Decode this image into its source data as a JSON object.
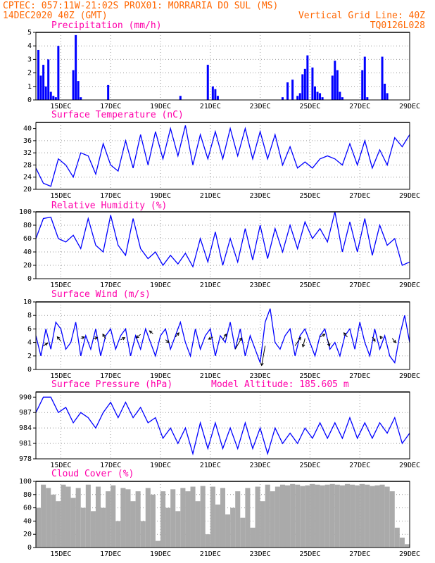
{
  "header": {
    "line1_left": "CPTEC:  057:11W-21:02S  PROX01: MORRARIA DO SUL (MS)",
    "line2_left": "14DEC2020 40Z (GMT)",
    "line2_right": "Vertical Grid Line: 40Z",
    "line3_right": "TQ0126L028"
  },
  "x_dates": [
    "15DEC",
    "17DEC",
    "19DEC",
    "21DEC",
    "23DEC",
    "25DEC",
    "27DEC",
    "29DEC"
  ],
  "colors": {
    "header": "#ff6600",
    "title": "#ff00aa",
    "line": "#0000ff",
    "bar": "#0000ff",
    "cloud": "#aaaaaa"
  },
  "chart_data": [
    {
      "type": "bar",
      "title": "Precipitation (mm/h)",
      "ylim": [
        0,
        5
      ],
      "yticks": [
        0,
        1,
        2,
        3,
        4,
        5
      ],
      "x_range": [
        14,
        29
      ],
      "series": [
        {
          "x": [
            14.1,
            14.2,
            14.3,
            14.4,
            14.5,
            14.6,
            14.7,
            14.8,
            14.9,
            15.5,
            15.6,
            15.7,
            15.8,
            16.9,
            19.8,
            20.9,
            21.1,
            21.2,
            21.3,
            23.9,
            24.1,
            24.3,
            24.5,
            24.6,
            24.7,
            24.8,
            24.9,
            25.1,
            25.2,
            25.3,
            25.4,
            25.5,
            25.9,
            26.0,
            26.1,
            26.2,
            26.3,
            27.1,
            27.2,
            27.3,
            27.9,
            28.0,
            28.1
          ],
          "y": [
            3.7,
            1.8,
            2.6,
            1.0,
            3.0,
            0.6,
            0.3,
            0.2,
            4.0,
            2.2,
            4.8,
            1.4,
            0.2,
            1.1,
            0.3,
            2.6,
            1.0,
            0.8,
            0.3,
            0.2,
            1.3,
            1.5,
            0.3,
            0.5,
            1.9,
            2.3,
            3.3,
            2.4,
            1.0,
            0.6,
            0.5,
            0.2,
            1.8,
            2.9,
            2.2,
            0.6,
            0.2,
            2.2,
            3.2,
            0.2,
            3.2,
            1.2,
            0.5
          ]
        }
      ]
    },
    {
      "type": "line",
      "title": "Surface Temperature (nC)",
      "ylim": [
        20,
        42
      ],
      "yticks": [
        20,
        24,
        28,
        32,
        36,
        40
      ],
      "x_range": [
        14,
        29
      ],
      "series": [
        {
          "x": [
            14.0,
            14.3,
            14.6,
            14.9,
            15.2,
            15.5,
            15.8,
            16.1,
            16.4,
            16.7,
            17.0,
            17.3,
            17.6,
            17.9,
            18.2,
            18.5,
            18.8,
            19.1,
            19.4,
            19.7,
            20.0,
            20.3,
            20.6,
            20.9,
            21.2,
            21.5,
            21.8,
            22.1,
            22.4,
            22.7,
            23.0,
            23.3,
            23.6,
            23.9,
            24.2,
            24.5,
            24.8,
            25.1,
            25.4,
            25.7,
            26.0,
            26.3,
            26.6,
            26.9,
            27.2,
            27.5,
            27.8,
            28.1,
            28.4,
            28.7,
            29.0
          ],
          "y": [
            27,
            22,
            21,
            30,
            28,
            24,
            32,
            31,
            25,
            35,
            28,
            26,
            36,
            27,
            38,
            28,
            39,
            30,
            40,
            31,
            41,
            28,
            38,
            30,
            39,
            30,
            40,
            31,
            40,
            30,
            39,
            30,
            38,
            28,
            34,
            27,
            29,
            27,
            30,
            31,
            30,
            28,
            35,
            28,
            36,
            27,
            33,
            28,
            37,
            34,
            38
          ]
        }
      ]
    },
    {
      "type": "line",
      "title": "Relative Humidity (%)",
      "ylim": [
        0,
        100
      ],
      "yticks": [
        0,
        20,
        40,
        60,
        80,
        100
      ],
      "x_range": [
        14,
        29
      ],
      "series": [
        {
          "x": [
            14.0,
            14.3,
            14.6,
            14.9,
            15.2,
            15.5,
            15.8,
            16.1,
            16.4,
            16.7,
            17.0,
            17.3,
            17.6,
            17.9,
            18.2,
            18.5,
            18.8,
            19.1,
            19.4,
            19.7,
            20.0,
            20.3,
            20.6,
            20.9,
            21.2,
            21.5,
            21.8,
            22.1,
            22.4,
            22.7,
            23.0,
            23.3,
            23.6,
            23.9,
            24.2,
            24.5,
            24.8,
            25.1,
            25.4,
            25.7,
            26.0,
            26.3,
            26.6,
            26.9,
            27.2,
            27.5,
            27.8,
            28.1,
            28.4,
            28.7,
            29.0
          ],
          "y": [
            60,
            90,
            92,
            60,
            55,
            65,
            45,
            90,
            50,
            40,
            95,
            50,
            35,
            90,
            45,
            30,
            40,
            20,
            35,
            22,
            38,
            18,
            60,
            25,
            70,
            20,
            60,
            25,
            75,
            28,
            80,
            30,
            75,
            40,
            80,
            45,
            85,
            60,
            75,
            55,
            100,
            40,
            85,
            40,
            90,
            35,
            80,
            50,
            60,
            20,
            25
          ]
        }
      ]
    },
    {
      "type": "line",
      "title": "Surface Wind (m/s)",
      "ylim": [
        0,
        10
      ],
      "yticks": [
        0,
        2,
        4,
        6,
        8,
        10
      ],
      "x_range": [
        14,
        29
      ],
      "series": [
        {
          "x": [
            14.0,
            14.2,
            14.4,
            14.6,
            14.8,
            15.0,
            15.2,
            15.4,
            15.6,
            15.8,
            16.0,
            16.2,
            16.4,
            16.6,
            16.8,
            17.0,
            17.2,
            17.4,
            17.6,
            17.8,
            18.0,
            18.2,
            18.4,
            18.6,
            18.8,
            19.0,
            19.2,
            19.4,
            19.6,
            19.8,
            20.0,
            20.2,
            20.4,
            20.6,
            20.8,
            21.0,
            21.2,
            21.4,
            21.6,
            21.8,
            22.0,
            22.2,
            22.4,
            22.6,
            22.8,
            23.0,
            23.2,
            23.4,
            23.6,
            23.8,
            24.0,
            24.2,
            24.4,
            24.6,
            24.8,
            25.0,
            25.2,
            25.4,
            25.6,
            25.8,
            26.0,
            26.2,
            26.4,
            26.6,
            26.8,
            27.0,
            27.2,
            27.4,
            27.6,
            27.8,
            28.0,
            28.2,
            28.4,
            28.6,
            28.8,
            29.0
          ],
          "y": [
            5,
            2,
            6,
            3,
            7,
            6,
            3,
            4,
            7,
            2,
            5,
            3,
            6,
            2,
            5,
            6,
            3,
            5,
            6,
            2,
            5,
            3,
            6,
            4,
            2,
            5,
            6,
            3,
            5,
            7,
            4,
            2,
            6,
            3,
            5,
            6,
            2,
            5,
            4,
            7,
            3,
            6,
            2,
            5,
            3,
            1,
            7,
            9,
            4,
            3,
            5,
            6,
            2,
            5,
            6,
            4,
            2,
            5,
            6,
            3,
            4,
            2,
            5,
            6,
            3,
            7,
            4,
            2,
            6,
            3,
            5,
            2,
            1,
            5,
            8,
            4
          ]
        }
      ],
      "vectors": [
        {
          "x": 14.3,
          "y": 3.5,
          "u": 0.6,
          "v": 0.4
        },
        {
          "x": 15.0,
          "y": 4.2,
          "u": -0.5,
          "v": 0.6
        },
        {
          "x": 15.8,
          "y": 4.6,
          "u": 0.5,
          "v": 0.2
        },
        {
          "x": 16.3,
          "y": 4.6,
          "u": 0.6,
          "v": 0.1
        },
        {
          "x": 16.8,
          "y": 4.5,
          "u": -0.4,
          "v": 0.7
        },
        {
          "x": 17.4,
          "y": 4.4,
          "u": 0.6,
          "v": 0.3
        },
        {
          "x": 18.2,
          "y": 5.2,
          "u": -0.6,
          "v": -0.5
        },
        {
          "x": 18.7,
          "y": 5.3,
          "u": -0.5,
          "v": 0.4
        },
        {
          "x": 19.2,
          "y": 4.4,
          "u": 0.5,
          "v": -0.4
        },
        {
          "x": 19.6,
          "y": 4.8,
          "u": 0.5,
          "v": 0.6
        },
        {
          "x": 21.1,
          "y": 4.8,
          "u": -0.6,
          "v": -0.3
        },
        {
          "x": 21.5,
          "y": 4.4,
          "u": 0.5,
          "v": 0.8
        },
        {
          "x": 22.0,
          "y": 3.0,
          "u": 0.9,
          "v": 1.6
        },
        {
          "x": 23.2,
          "y": 3.5,
          "u": -0.5,
          "v": -2.8
        },
        {
          "x": 24.4,
          "y": 3.5,
          "u": 0.8,
          "v": 1.2
        },
        {
          "x": 24.8,
          "y": 4.6,
          "u": -0.3,
          "v": -1.2
        },
        {
          "x": 25.4,
          "y": 4.8,
          "u": 0.7,
          "v": 0.4
        },
        {
          "x": 25.7,
          "y": 4.5,
          "u": 0.3,
          "v": -1.0
        },
        {
          "x": 26.5,
          "y": 4.8,
          "u": -0.5,
          "v": 0.6
        },
        {
          "x": 27.5,
          "y": 4.8,
          "u": 0.4,
          "v": -0.6
        },
        {
          "x": 27.9,
          "y": 4.5,
          "u": -0.3,
          "v": 0.4
        },
        {
          "x": 28.3,
          "y": 4.6,
          "u": 0.5,
          "v": -0.6
        }
      ]
    },
    {
      "type": "line",
      "title": "Surface Pressure (hPa)",
      "subtitle": "Model Altitude: 185.605 m",
      "ylim": [
        978,
        991
      ],
      "yticks": [
        978,
        981,
        984,
        987,
        990
      ],
      "x_range": [
        14,
        29
      ],
      "series": [
        {
          "x": [
            14.0,
            14.3,
            14.6,
            14.9,
            15.2,
            15.5,
            15.8,
            16.1,
            16.4,
            16.7,
            17.0,
            17.3,
            17.6,
            17.9,
            18.2,
            18.5,
            18.8,
            19.1,
            19.4,
            19.7,
            20.0,
            20.3,
            20.6,
            20.9,
            21.2,
            21.5,
            21.8,
            22.1,
            22.4,
            22.7,
            23.0,
            23.3,
            23.6,
            23.9,
            24.2,
            24.5,
            24.8,
            25.1,
            25.4,
            25.7,
            26.0,
            26.3,
            26.6,
            26.9,
            27.2,
            27.5,
            27.8,
            28.1,
            28.4,
            28.7,
            29.0
          ],
          "y": [
            987,
            990,
            990,
            987,
            988,
            985,
            987,
            986,
            984,
            987,
            989,
            986,
            989,
            986,
            988,
            985,
            986,
            982,
            984,
            981,
            984,
            979,
            985,
            980,
            985,
            980,
            984,
            980,
            985,
            980,
            984,
            979,
            984,
            981,
            983,
            981,
            984,
            982,
            985,
            982,
            985,
            982,
            986,
            982,
            985,
            982,
            985,
            983,
            986,
            981,
            983
          ]
        }
      ]
    },
    {
      "type": "area",
      "title": "Cloud Cover (%)",
      "ylim": [
        0,
        100
      ],
      "yticks": [
        0,
        20,
        40,
        60,
        80,
        100
      ],
      "x_range": [
        14,
        29
      ],
      "series": [
        {
          "x": [
            14.0,
            14.2,
            14.4,
            14.6,
            14.8,
            15.0,
            15.2,
            15.4,
            15.6,
            15.8,
            16.0,
            16.2,
            16.4,
            16.6,
            16.8,
            17.0,
            17.2,
            17.4,
            17.6,
            17.8,
            18.0,
            18.2,
            18.4,
            18.6,
            18.8,
            19.0,
            19.2,
            19.4,
            19.6,
            19.8,
            20.0,
            20.2,
            20.4,
            20.6,
            20.8,
            21.0,
            21.2,
            21.4,
            21.6,
            21.8,
            22.0,
            22.2,
            22.4,
            22.6,
            22.8,
            23.0,
            23.2,
            23.4,
            23.6,
            23.8,
            24.0,
            24.2,
            24.4,
            24.6,
            24.8,
            25.0,
            25.2,
            25.4,
            25.6,
            25.8,
            26.0,
            26.2,
            26.4,
            26.6,
            26.8,
            27.0,
            27.2,
            27.4,
            27.6,
            27.8,
            28.0,
            28.2,
            28.4,
            28.6,
            28.8,
            29.0
          ],
          "y": [
            60,
            95,
            90,
            80,
            70,
            95,
            92,
            75,
            90,
            60,
            95,
            55,
            92,
            60,
            85,
            94,
            40,
            90,
            88,
            70,
            85,
            40,
            90,
            80,
            10,
            85,
            60,
            88,
            55,
            90,
            85,
            92,
            70,
            93,
            20,
            92,
            65,
            90,
            50,
            60,
            85,
            45,
            90,
            30,
            92,
            70,
            95,
            85,
            92,
            95,
            94,
            96,
            95,
            93,
            94,
            96,
            95,
            94,
            95,
            96,
            95,
            94,
            96,
            95,
            94,
            96,
            95,
            93,
            94,
            95,
            92,
            85,
            30,
            15,
            5,
            0
          ]
        }
      ]
    }
  ]
}
